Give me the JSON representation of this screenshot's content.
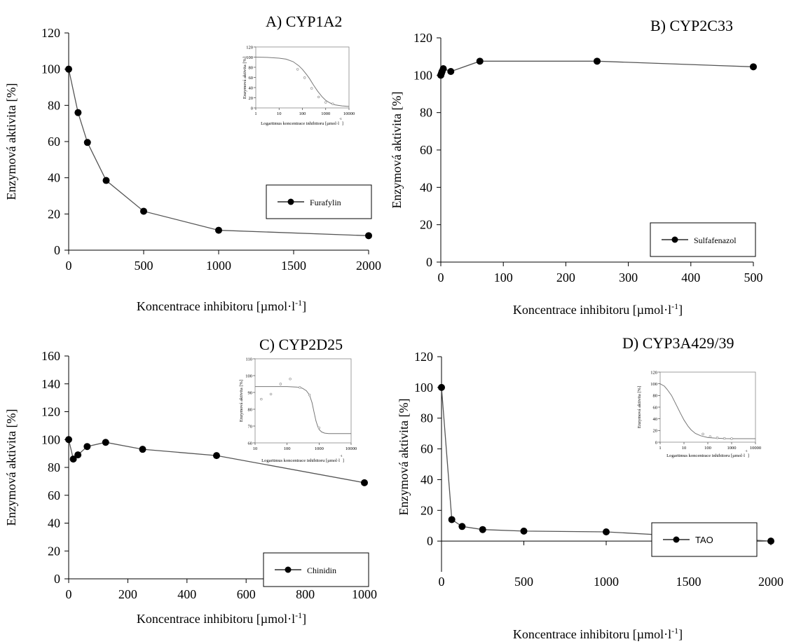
{
  "chart_data": [
    {
      "type": "line",
      "title": "A) CYP1A2",
      "xlabel": "Koncentrace inhibitoru [µmol·l",
      "xlabel_sup": "-1",
      "xlabel_end": "]",
      "ylabel": "Enzymová aktivita [%]",
      "xlim": [
        0,
        2000
      ],
      "ylim": [
        0,
        120
      ],
      "xticks": [
        0,
        500,
        1000,
        1500,
        2000
      ],
      "yticks": [
        0,
        20,
        40,
        60,
        80,
        100,
        120
      ],
      "grid": false,
      "legend_position": "right-middle",
      "series": [
        {
          "name": "Furafylin",
          "x": [
            0,
            62.5,
            125,
            250,
            500,
            1000,
            2000
          ],
          "y": [
            100,
            76,
            59.5,
            38.5,
            21.5,
            11,
            8
          ]
        }
      ],
      "inset": {
        "type": "line",
        "xscale": "log",
        "xticks": [
          1,
          10,
          100,
          1000,
          10000
        ],
        "xticklabels": [
          "1",
          "10",
          "100",
          "1000",
          "10000"
        ],
        "yticks": [
          0,
          20,
          40,
          60,
          80,
          100,
          120
        ],
        "ylim": [
          0,
          120
        ],
        "xlabel": "Logaritmus koncentrace inhibitoru [µmol·l",
        "xlabel_sup": "-1",
        "xlabel_end": "]",
        "ylabel": "Enzymová aktivita [%]",
        "points_x": [
          62.5,
          125,
          250,
          500,
          1000,
          2000
        ],
        "points_y": [
          76,
          59.5,
          38.5,
          21.5,
          11,
          8
        ],
        "fit_x": [
          1,
          3,
          10,
          20,
          40,
          70,
          100,
          150,
          200,
          300,
          450,
          700,
          1000,
          1500,
          2500,
          5000,
          10000
        ],
        "fit_y": [
          100,
          99.5,
          98,
          96,
          91,
          83,
          76,
          66,
          58,
          45,
          33,
          22,
          15,
          10,
          6,
          4,
          3
        ]
      }
    },
    {
      "type": "line",
      "title": "B) CYP2C33",
      "xlabel": "Koncentrace inhibitoru [µmol·l",
      "xlabel_sup": "-1",
      "xlabel_end": "]",
      "ylabel": "Enzymová aktivita [%]",
      "xlim": [
        0,
        500
      ],
      "ylim": [
        0,
        120
      ],
      "xticks": [
        0,
        100,
        200,
        300,
        400,
        500
      ],
      "yticks": [
        0,
        20,
        40,
        60,
        80,
        100,
        120
      ],
      "grid": false,
      "legend_position": "bottom-right",
      "series": [
        {
          "name": "Sulfafenazol",
          "x": [
            0,
            1,
            2,
            4,
            16,
            62.5,
            250,
            500
          ],
          "y": [
            100,
            101,
            102,
            103.5,
            102,
            107.5,
            107.5,
            104.5
          ]
        }
      ]
    },
    {
      "type": "line",
      "title": "C) CYP2D25",
      "xlabel": "Koncentrace inhibitoru  [µmol·l",
      "xlabel_sup": "-1",
      "xlabel_end": "]",
      "ylabel": "Enzymová aktivita [%]",
      "xlim": [
        0,
        1000
      ],
      "ylim": [
        0,
        160
      ],
      "xticks": [
        0,
        200,
        400,
        600,
        800,
        1000
      ],
      "yticks": [
        0,
        20,
        40,
        60,
        80,
        100,
        120,
        140,
        160
      ],
      "grid": false,
      "legend_position": "bottom-right",
      "series": [
        {
          "name": "Chinidin",
          "x": [
            0,
            15.6,
            31.2,
            62.5,
            125,
            250,
            500,
            1000
          ],
          "y": [
            100,
            86,
            89,
            95,
            98,
            93,
            88.5,
            69
          ]
        }
      ],
      "inset": {
        "type": "line",
        "xscale": "log",
        "xticks": [
          10,
          100,
          1000,
          10000
        ],
        "xticklabels": [
          "10",
          "100",
          "1000",
          "10000"
        ],
        "yticks": [
          60,
          70,
          80,
          90,
          100,
          110
        ],
        "ylim": [
          60,
          110
        ],
        "xlabel": "Logaritmus koncentrace inhibitoru  [µmol·l",
        "xlabel_sup": "-1",
        "xlabel_end": "]",
        "ylabel": "Enzymová aktivita [%]",
        "points_x": [
          15.6,
          31.2,
          62.5,
          125,
          250,
          500,
          1000
        ],
        "points_y": [
          86,
          89,
          95,
          98,
          93,
          88.5,
          69
        ],
        "fit_x": [
          10,
          30,
          100,
          200,
          300,
          400,
          500,
          600,
          700,
          800,
          900,
          1000,
          1200,
          1500,
          2000,
          5000,
          10000
        ],
        "fit_y": [
          93.5,
          93.5,
          93.5,
          93.2,
          92.5,
          91,
          88.5,
          84,
          78,
          73,
          70,
          68,
          66.5,
          65.8,
          65.5,
          65.5,
          65.5
        ]
      }
    },
    {
      "type": "line",
      "title": "D) CYP3A429/39",
      "xlabel": "Koncentrace inhibitoru [µmol·l",
      "xlabel_sup": "-1",
      "xlabel_end": "]",
      "ylabel": "Enzymová aktivita [%]",
      "xlim": [
        0,
        2000
      ],
      "ylim": [
        -20,
        120
      ],
      "xticks": [
        0,
        500,
        1000,
        1500,
        2000
      ],
      "yticks": [
        0,
        20,
        40,
        60,
        80,
        100,
        120
      ],
      "grid": false,
      "legend_position": "bottom-right",
      "series": [
        {
          "name": "TAO",
          "x": [
            0,
            62.5,
            125,
            250,
            500,
            1000,
            2000
          ],
          "y": [
            100,
            14,
            9.5,
            7.5,
            6.5,
            6,
            0
          ]
        }
      ],
      "inset": {
        "type": "line",
        "xscale": "log",
        "xticks": [
          1,
          10,
          100,
          1000,
          10000
        ],
        "xticklabels": [
          "1",
          "10",
          "100",
          "1000",
          "10000"
        ],
        "yticks": [
          0,
          20,
          40,
          60,
          80,
          100,
          120
        ],
        "ylim": [
          0,
          120
        ],
        "xlabel": "Logaritmus koncentrace inhibitoru [µmol·l",
        "xlabel_sup": "-1",
        "xlabel_end": "]",
        "ylabel": "Enzymová aktivita [%]",
        "points_x": [
          62.5,
          125,
          250,
          500,
          1000
        ],
        "points_y": [
          14,
          9.5,
          7.5,
          6.5,
          6
        ],
        "fit_x": [
          1,
          1.5,
          2,
          3,
          5,
          7,
          10,
          15,
          20,
          30,
          50,
          100,
          200,
          500,
          1000,
          3000,
          10000
        ],
        "fit_y": [
          100,
          96,
          90,
          80,
          62,
          50,
          38,
          27,
          21,
          15,
          11,
          8,
          7,
          6.2,
          6,
          6,
          6
        ]
      }
    }
  ]
}
